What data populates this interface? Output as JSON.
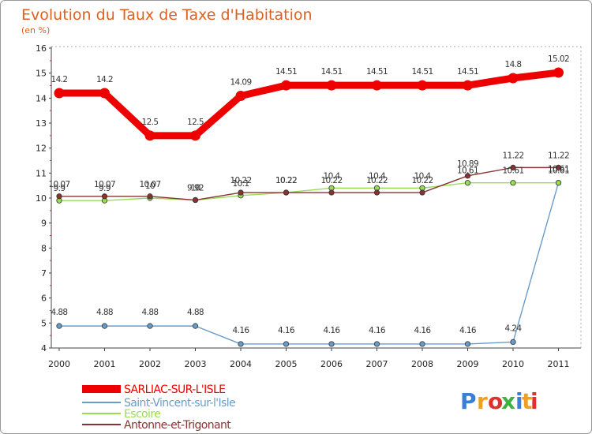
{
  "chart_data": {
    "type": "line",
    "title": "Evolution du Taux de Taxe d'Habitation",
    "subtitle": "(en %)",
    "xlabel": "",
    "ylabel": "",
    "x": [
      "2000",
      "2001",
      "2002",
      "2003",
      "2004",
      "2005",
      "2006",
      "2007",
      "2008",
      "2009",
      "2010",
      "2011"
    ],
    "ylim": [
      4,
      16
    ],
    "yticks": [
      "4",
      "5",
      "6",
      "7",
      "8",
      "9",
      "10",
      "11",
      "12",
      "13",
      "14",
      "15",
      "16"
    ],
    "grid": false,
    "legend_position": "bottom-left",
    "series": [
      {
        "name": "SARLIAC-SUR-L'ISLE",
        "color": "#ee0000",
        "emphasis": "thick",
        "values": [
          14.2,
          14.2,
          12.5,
          12.5,
          14.09,
          14.51,
          14.51,
          14.51,
          14.51,
          14.51,
          14.8,
          15.02
        ],
        "labels": [
          "14.2",
          "14.2",
          "12.5",
          "12.5",
          "14.09",
          "14.51",
          "14.51",
          "14.51",
          "14.51",
          "14.51",
          "14.8",
          "15.02"
        ]
      },
      {
        "name": "Saint-Vincent-sur-l'Isle",
        "color": "#6a9cc8",
        "emphasis": "thin",
        "values": [
          4.88,
          4.88,
          4.88,
          4.88,
          4.16,
          4.16,
          4.16,
          4.16,
          4.16,
          4.16,
          4.24,
          10.61
        ],
        "labels": [
          "4.88",
          "4.88",
          "4.88",
          "4.88",
          "4.16",
          "4.16",
          "4.16",
          "4.16",
          "4.16",
          "4.16",
          "4.24",
          "10.61"
        ]
      },
      {
        "name": "Escoire",
        "color": "#99dd55",
        "emphasis": "thin",
        "values": [
          9.9,
          9.9,
          10,
          9.92,
          10.1,
          10.22,
          10.4,
          10.4,
          10.4,
          10.61,
          10.61,
          10.61
        ],
        "labels": [
          "9.9",
          "9.9",
          "10",
          "9.92",
          "10.1",
          "10.22",
          "10.4",
          "10.4",
          "10.4",
          "10.61",
          "10.61",
          "10.61"
        ]
      },
      {
        "name": "Antonne-et-Trigonant",
        "color": "#883333",
        "emphasis": "thin",
        "values": [
          10.07,
          10.07,
          10.07,
          9.92,
          10.22,
          10.22,
          10.22,
          10.22,
          10.22,
          10.89,
          11.22,
          11.22
        ],
        "labels": [
          "10.07",
          "10.07",
          "10.07",
          "10",
          "10.22",
          "10.22",
          "10.22",
          "10.22",
          "10.22",
          "10.89",
          "11.22",
          "11.22"
        ]
      }
    ]
  },
  "watermark": {
    "text": "Proxiti",
    "letter_colors": [
      "#3a7fd5",
      "#f0a020",
      "#e03030",
      "#40b040",
      "#3a7fd5",
      "#f0a020",
      "#e03030"
    ]
  }
}
